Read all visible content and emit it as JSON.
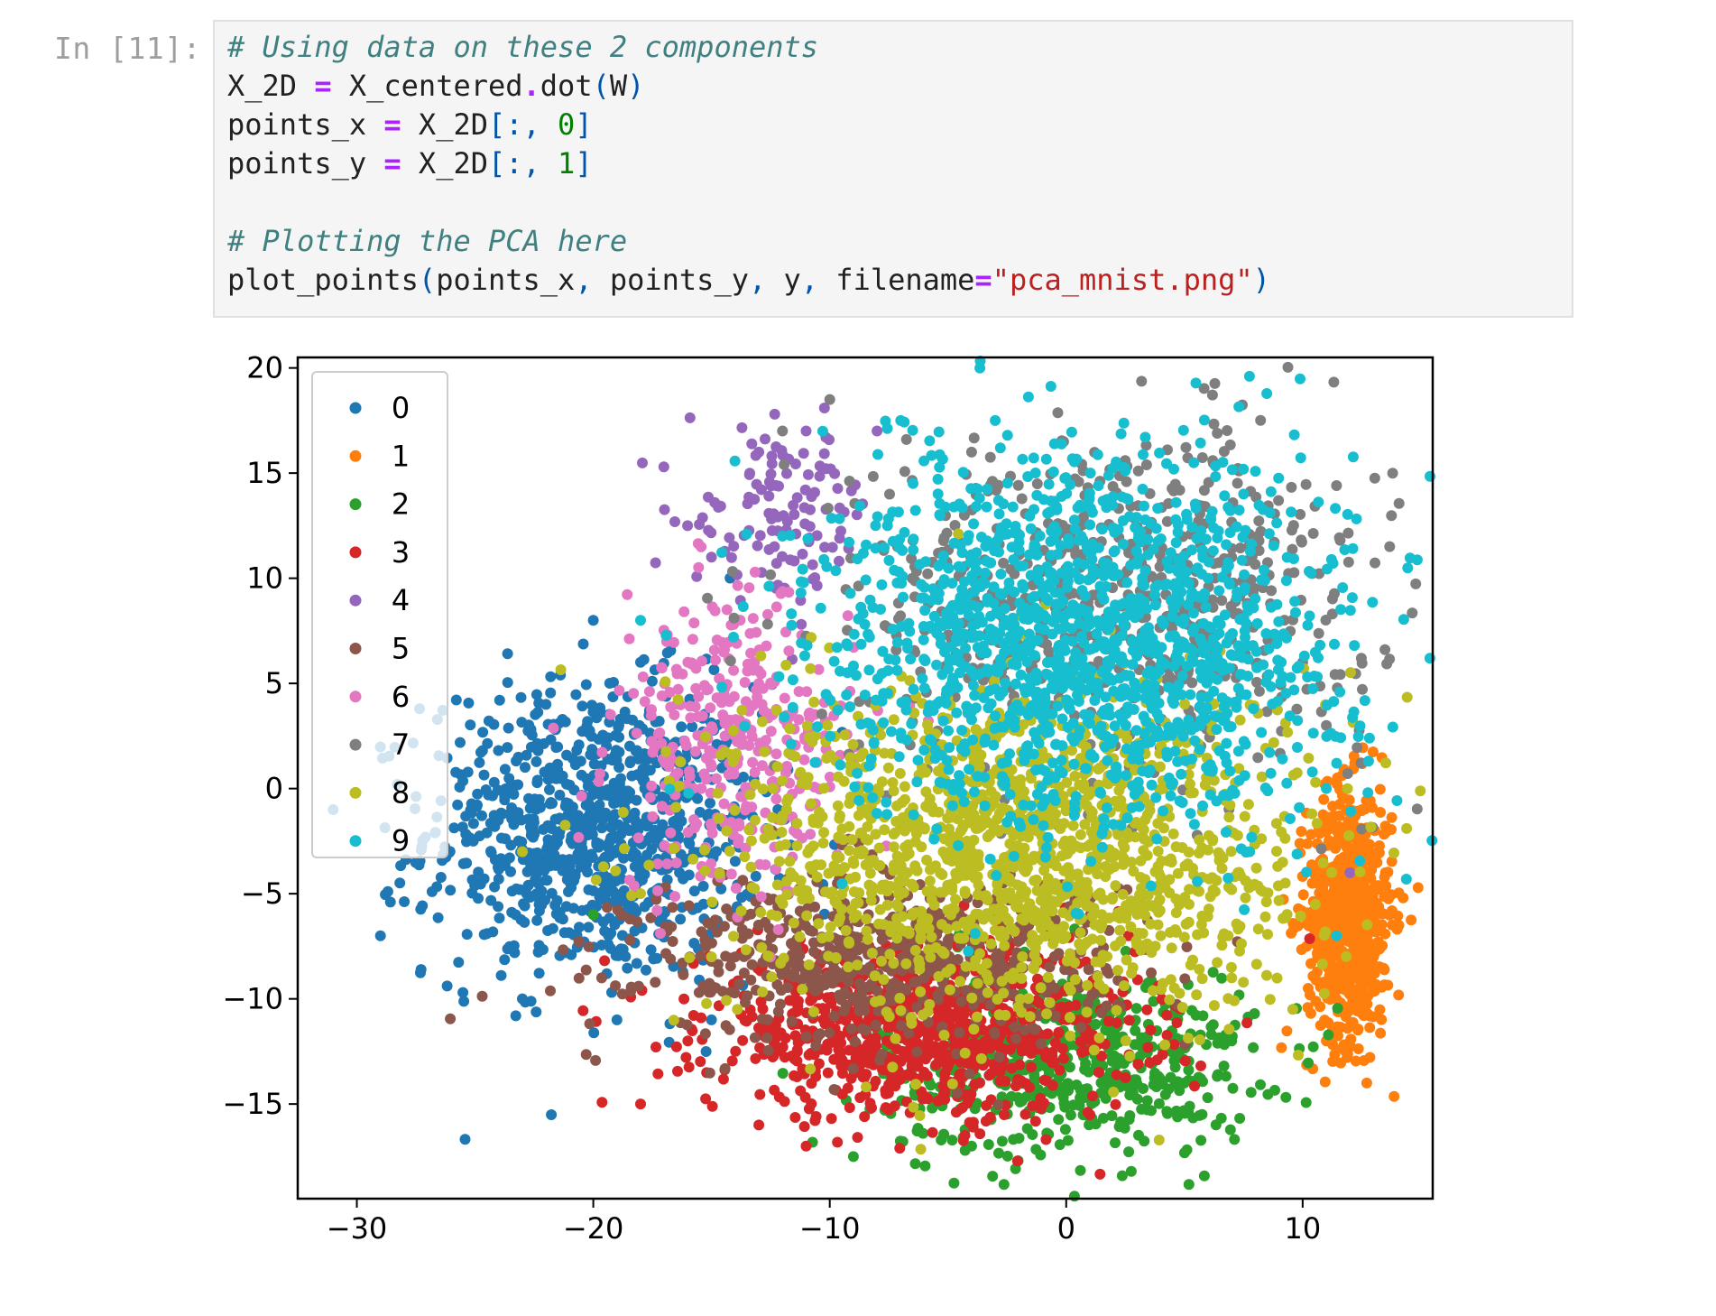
{
  "cell": {
    "prompt": "In [11]:",
    "lines": [
      [
        {
          "t": "# Using data on these 2 components",
          "c": "comment"
        }
      ],
      [
        {
          "t": "X_2D",
          "c": "name"
        },
        {
          "t": " = ",
          "c": "op"
        },
        {
          "t": "X_centered",
          "c": "name"
        },
        {
          "t": ".",
          "c": "op"
        },
        {
          "t": "dot",
          "c": "name"
        },
        {
          "t": "(",
          "c": "punc"
        },
        {
          "t": "W",
          "c": "name"
        },
        {
          "t": ")",
          "c": "punc"
        }
      ],
      [
        {
          "t": "points_x",
          "c": "name"
        },
        {
          "t": " = ",
          "c": "op"
        },
        {
          "t": "X_2D",
          "c": "name"
        },
        {
          "t": "[:, ",
          "c": "punc"
        },
        {
          "t": "0",
          "c": "num"
        },
        {
          "t": "]",
          "c": "punc"
        }
      ],
      [
        {
          "t": "points_y",
          "c": "name"
        },
        {
          "t": " = ",
          "c": "op"
        },
        {
          "t": "X_2D",
          "c": "name"
        },
        {
          "t": "[:, ",
          "c": "punc"
        },
        {
          "t": "1",
          "c": "num"
        },
        {
          "t": "]",
          "c": "punc"
        }
      ],
      [],
      [
        {
          "t": "# Plotting the PCA here",
          "c": "comment"
        }
      ],
      [
        {
          "t": "plot_points",
          "c": "name"
        },
        {
          "t": "(",
          "c": "punc"
        },
        {
          "t": "points_x",
          "c": "name"
        },
        {
          "t": ", ",
          "c": "punc"
        },
        {
          "t": "points_y",
          "c": "name"
        },
        {
          "t": ", ",
          "c": "punc"
        },
        {
          "t": "y",
          "c": "name"
        },
        {
          "t": ", ",
          "c": "punc"
        },
        {
          "t": "filename",
          "c": "name"
        },
        {
          "t": "=",
          "c": "op"
        },
        {
          "t": "\"pca_mnist.png\"",
          "c": "str"
        },
        {
          "t": ")",
          "c": "punc"
        }
      ]
    ]
  },
  "chart_data": {
    "type": "scatter",
    "xlim": [
      -32.5,
      15.5
    ],
    "ylim": [
      -19.5,
      20.5
    ],
    "x_ticks": [
      -30,
      -20,
      -10,
      0,
      10
    ],
    "y_ticks": [
      -15,
      -10,
      -5,
      0,
      5,
      10,
      15,
      20
    ],
    "x_tick_labels": [
      "−30",
      "−20",
      "−10",
      "0",
      "10"
    ],
    "y_tick_labels": [
      "−15",
      "−10",
      "−5",
      "0",
      "5",
      "10",
      "15",
      "20"
    ],
    "grid": false,
    "legend_placement": "upper-left",
    "draw_order": [
      "0",
      "1",
      "2",
      "3",
      "4",
      "5",
      "6",
      "7",
      "8",
      "9"
    ],
    "series": [
      {
        "name": "0",
        "color": "#1f77b4",
        "center": [
          -20,
          -2
        ],
        "spread": [
          3.5,
          3.5
        ],
        "count": 900,
        "samples": [
          [
            -31,
            -1
          ],
          [
            -29,
            -7
          ],
          [
            -23,
            -10
          ],
          [
            -18,
            6
          ],
          [
            -20,
            8
          ],
          [
            -22,
            4
          ],
          [
            -15,
            -11
          ],
          [
            -19,
            -11
          ]
        ]
      },
      {
        "name": "1",
        "color": "#ff7f0e",
        "center": [
          12.0,
          -6
        ],
        "spread": [
          0.9,
          3.0
        ],
        "count": 700,
        "samples": [
          [
            13.5,
            -4
          ],
          [
            11,
            -12
          ],
          [
            12.5,
            -1
          ],
          [
            13,
            -8
          ]
        ]
      },
      {
        "name": "2",
        "color": "#2ca02c",
        "center": [
          0,
          -13
        ],
        "spread": [
          4.0,
          2.2
        ],
        "count": 550,
        "samples": [
          [
            -9,
            -17.5
          ],
          [
            -4,
            -17
          ],
          [
            5,
            -14
          ],
          [
            -20,
            -6
          ],
          [
            7,
            -12
          ]
        ]
      },
      {
        "name": "3",
        "color": "#d62728",
        "center": [
          -6,
          -11.5
        ],
        "spread": [
          4.5,
          2.0
        ],
        "count": 900,
        "samples": [
          [
            -18,
            -15
          ],
          [
            -13,
            -16
          ],
          [
            -11,
            -17
          ],
          [
            -16,
            -12
          ],
          [
            2,
            -10
          ]
        ]
      },
      {
        "name": "4",
        "color": "#9467bd",
        "center": [
          -12,
          13
        ],
        "spread": [
          2.0,
          2.0
        ],
        "count": 120,
        "samples": [
          [
            -15,
            11
          ],
          [
            -13,
            16
          ],
          [
            -11,
            17
          ],
          [
            -8,
            17
          ],
          [
            12,
            -4
          ]
        ]
      },
      {
        "name": "5",
        "color": "#8c564b",
        "center": [
          -8,
          -8
        ],
        "spread": [
          5.0,
          2.0
        ],
        "count": 600,
        "samples": [
          [
            -14,
            -8
          ],
          [
            -10,
            -9
          ],
          [
            -6,
            -9
          ]
        ]
      },
      {
        "name": "6",
        "color": "#e377c2",
        "center": [
          -14,
          2
        ],
        "spread": [
          2.5,
          3.5
        ],
        "count": 350,
        "samples": [
          [
            -16,
            6
          ],
          [
            -13,
            5
          ],
          [
            -15,
            -4
          ]
        ]
      },
      {
        "name": "7",
        "color": "#7f7f7f",
        "center": [
          2,
          9
        ],
        "spread": [
          5.5,
          4.0
        ],
        "count": 650,
        "samples": [
          [
            -10,
            18.5
          ],
          [
            -12,
            17
          ],
          [
            -4,
            16
          ],
          [
            7,
            11
          ],
          [
            10,
            6
          ],
          [
            11,
            3
          ]
        ]
      },
      {
        "name": "8",
        "color": "#bcbd22",
        "center": [
          -2,
          -3
        ],
        "spread": [
          6.0,
          4.0
        ],
        "count": 1500,
        "samples": [
          [
            -15,
            -8
          ],
          [
            -23,
            -3
          ],
          [
            -18,
            -5
          ],
          [
            4,
            -7
          ],
          [
            7,
            -9
          ]
        ]
      },
      {
        "name": "9",
        "color": "#17becf",
        "center": [
          1,
          7
        ],
        "spread": [
          5.5,
          4.5
        ],
        "count": 1500,
        "samples": [
          [
            -7,
            17.5
          ],
          [
            -3,
            17.5
          ],
          [
            -18,
            8
          ],
          [
            -12,
            12
          ],
          [
            6,
            10
          ],
          [
            11,
            0
          ]
        ]
      }
    ]
  }
}
